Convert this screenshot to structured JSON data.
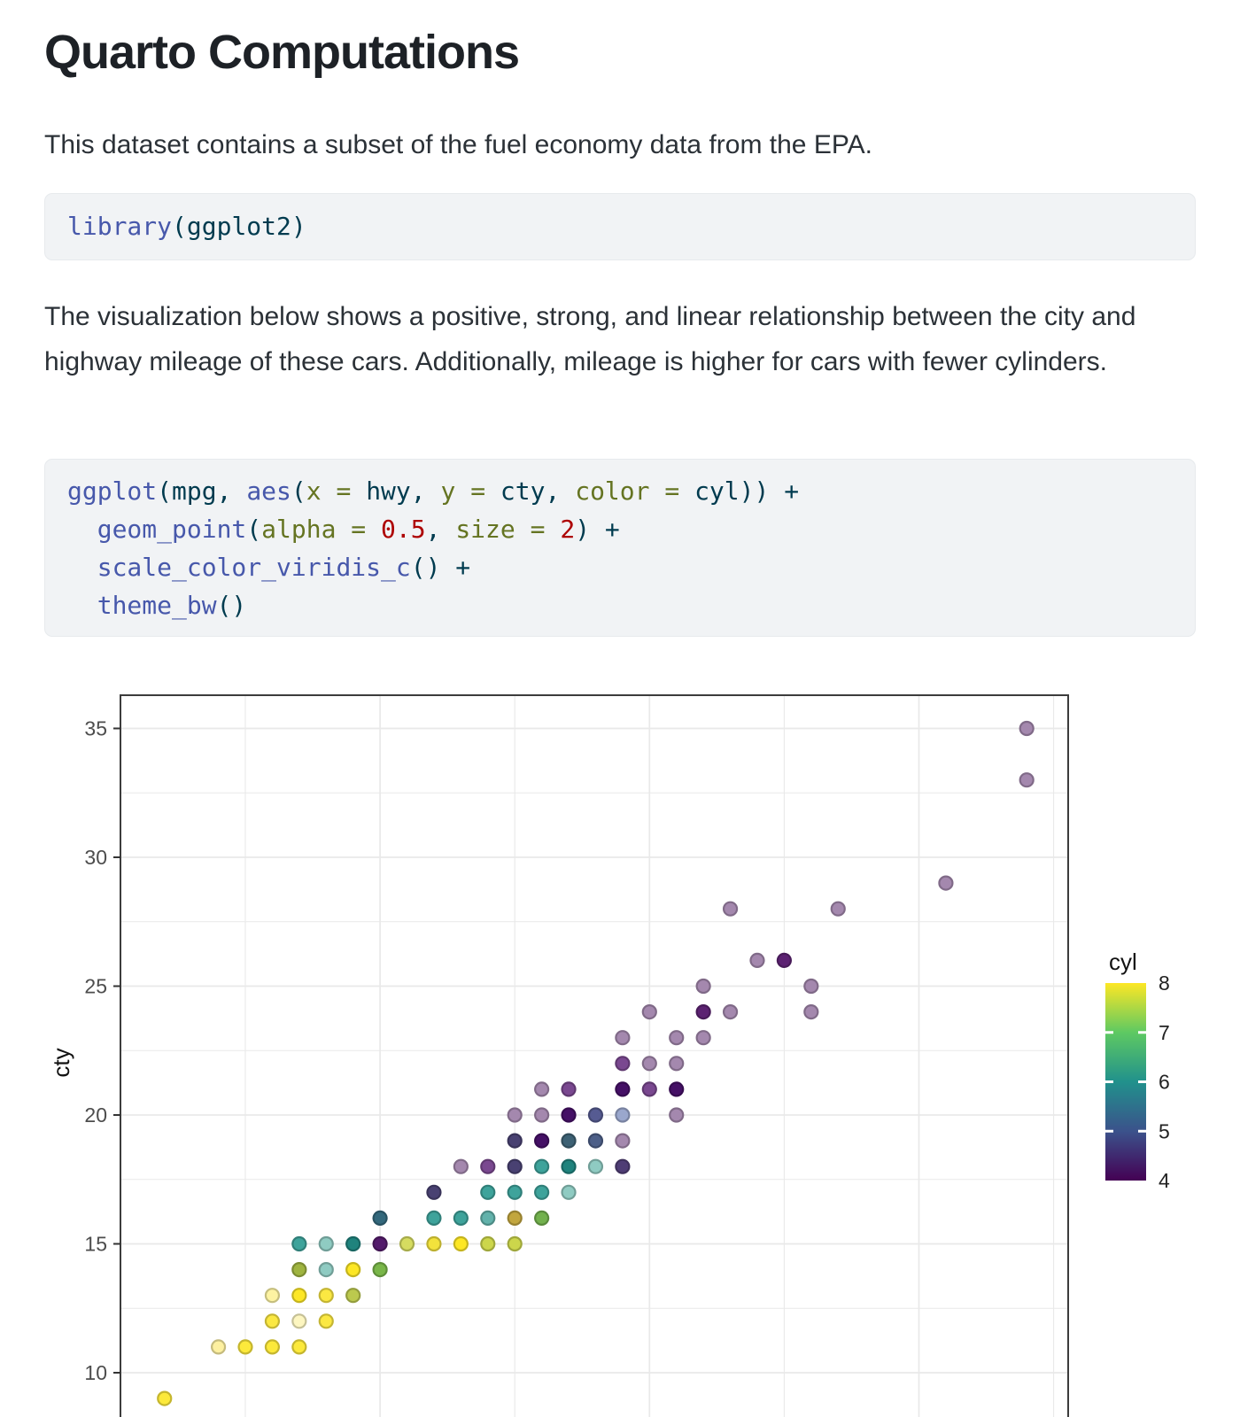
{
  "document": {
    "title": "Quarto Computations",
    "paragraph_1": "This dataset contains a subset of the fuel economy data from the EPA.",
    "paragraph_2": "The visualization below shows a positive, strong, and linear relationship between the city and highway mileage of these cars. Additionally, mileage is higher for cars with fewer cylinders."
  },
  "syntax_colors": {
    "fu": "#4758AB",
    "base": "#003B4F",
    "at": "#657422",
    "num": "#AD0000"
  },
  "code_blocks": [
    {
      "name": "library-call",
      "lines": [
        [
          [
            "library",
            "fu"
          ],
          [
            "(ggplot2)",
            "base"
          ]
        ]
      ]
    },
    {
      "name": "ggplot-call",
      "lines": [
        [
          [
            "ggplot",
            "fu"
          ],
          [
            "(mpg, ",
            "base"
          ],
          [
            "aes",
            "fu"
          ],
          [
            "(",
            "base"
          ],
          [
            "x = ",
            "at"
          ],
          [
            "hwy, ",
            "base"
          ],
          [
            "y = ",
            "at"
          ],
          [
            "cty, ",
            "base"
          ],
          [
            "color = ",
            "at"
          ],
          [
            "cyl)) +",
            "base"
          ]
        ],
        [
          [
            "  ",
            "base"
          ],
          [
            "geom_point",
            "fu"
          ],
          [
            "(",
            "base"
          ],
          [
            "alpha = ",
            "at"
          ],
          [
            "0.5",
            "num"
          ],
          [
            ", ",
            "base"
          ],
          [
            "size = ",
            "at"
          ],
          [
            "2",
            "num"
          ],
          [
            ") +",
            "base"
          ]
        ],
        [
          [
            "  ",
            "base"
          ],
          [
            "scale_color_viridis_c",
            "fu"
          ],
          [
            "() +",
            "base"
          ]
        ],
        [
          [
            "  ",
            "base"
          ],
          [
            "theme_bw",
            "fu"
          ],
          [
            "()",
            "base"
          ]
        ]
      ]
    }
  ],
  "chart_data": {
    "type": "scatter",
    "x_field": "hwy",
    "y_field": "cty",
    "color_field": "cyl",
    "ylabel": "cty",
    "xlabel": "",
    "x_axis_labels_visible": false,
    "grid": true,
    "y_ticks": [
      35,
      30,
      25,
      20,
      15,
      10
    ],
    "y_gridlines_minor": [
      32.5,
      27.5,
      22.5,
      17.5,
      12.5
    ],
    "x_gridlines_major": [
      20,
      30,
      40
    ],
    "x_gridlines_minor": [
      15,
      25,
      35,
      45
    ],
    "x_range_visible": [
      10.8,
      45.5
    ],
    "y_range_visible": [
      8.2,
      36.3
    ],
    "panel_border_color": "#3c3c3c",
    "gridline_color": "#e9e9e9",
    "tick_label_color": "#4d4d4d",
    "legend": {
      "title": "cyl",
      "position": "right",
      "ticks": [
        8,
        7,
        6,
        5,
        4
      ],
      "viridis_top_to_bottom": [
        "#FDE725",
        "#5EC962",
        "#21918C",
        "#3B528B",
        "#440154"
      ]
    },
    "points": {
      "columns": [
        "hwy",
        "cty",
        "fill"
      ],
      "rows": [
        [
          44,
          35,
          "#a488ae"
        ],
        [
          44,
          33,
          "#a488ae"
        ],
        [
          41,
          29,
          "#a488ae"
        ],
        [
          33,
          28,
          "#a488ae"
        ],
        [
          37,
          28,
          "#a488ae"
        ],
        [
          34,
          26,
          "#a488ae"
        ],
        [
          35,
          26,
          "#5c2272"
        ],
        [
          32,
          25,
          "#a488ae"
        ],
        [
          36,
          25,
          "#a488ae"
        ],
        [
          30,
          24,
          "#a488ae"
        ],
        [
          32,
          24,
          "#5c2272"
        ],
        [
          33,
          24,
          "#a488ae"
        ],
        [
          36,
          24,
          "#a488ae"
        ],
        [
          29,
          23,
          "#a488ae"
        ],
        [
          31,
          23,
          "#a488ae"
        ],
        [
          32,
          23,
          "#a488ae"
        ],
        [
          29,
          22,
          "#7a4890"
        ],
        [
          30,
          22,
          "#a488ae"
        ],
        [
          31,
          22,
          "#a488ae"
        ],
        [
          26,
          21,
          "#a488ae"
        ],
        [
          27,
          21,
          "#7a4890"
        ],
        [
          29,
          21,
          "#451066"
        ],
        [
          30,
          21,
          "#7a4890"
        ],
        [
          31,
          21,
          "#451066"
        ],
        [
          25,
          20,
          "#a488ae"
        ],
        [
          26,
          20,
          "#a488ae"
        ],
        [
          27,
          20,
          "#451066"
        ],
        [
          28,
          20,
          "#565b92"
        ],
        [
          29,
          20,
          "#9aa7cd"
        ],
        [
          31,
          20,
          "#a488ae"
        ],
        [
          25,
          19,
          "#494172"
        ],
        [
          26,
          19,
          "#451066"
        ],
        [
          27,
          19,
          "#3d6174"
        ],
        [
          28,
          19,
          "#4d5f88"
        ],
        [
          29,
          19,
          "#a488ae"
        ],
        [
          23,
          18,
          "#a488ae"
        ],
        [
          24,
          18,
          "#7a4890"
        ],
        [
          25,
          18,
          "#494172"
        ],
        [
          26,
          18,
          "#3ea39b"
        ],
        [
          27,
          18,
          "#1f837d"
        ],
        [
          28,
          18,
          "#8fcbc2"
        ],
        [
          29,
          18,
          "#4f3d75"
        ],
        [
          22,
          17,
          "#494172"
        ],
        [
          24,
          17,
          "#3ea39b"
        ],
        [
          25,
          17,
          "#3ea39b"
        ],
        [
          26,
          17,
          "#3ea39b"
        ],
        [
          27,
          17,
          "#8fcbc2"
        ],
        [
          20,
          16,
          "#33687c"
        ],
        [
          22,
          16,
          "#3ea39b"
        ],
        [
          23,
          16,
          "#3ea39b"
        ],
        [
          24,
          16,
          "#62b2ab"
        ],
        [
          25,
          16,
          "#c2a63e"
        ],
        [
          26,
          16,
          "#72b14d"
        ],
        [
          17,
          15,
          "#3ea39b"
        ],
        [
          18,
          15,
          "#8fcbc2"
        ],
        [
          19,
          15,
          "#1f837d"
        ],
        [
          20,
          15,
          "#531b6b"
        ],
        [
          21,
          15,
          "#d6dc60"
        ],
        [
          22,
          15,
          "#f2e23c"
        ],
        [
          23,
          15,
          "#fde725"
        ],
        [
          24,
          15,
          "#ccd64b"
        ],
        [
          25,
          15,
          "#ccd64b"
        ],
        [
          17,
          14,
          "#9fb440"
        ],
        [
          18,
          14,
          "#8fcbc2"
        ],
        [
          19,
          14,
          "#fde725"
        ],
        [
          20,
          14,
          "#79b649"
        ],
        [
          16,
          13,
          "#fdf3a2"
        ],
        [
          17,
          13,
          "#fde725"
        ],
        [
          18,
          13,
          "#fbe842"
        ],
        [
          19,
          13,
          "#bcc94e"
        ],
        [
          16,
          12,
          "#fbe842"
        ],
        [
          17,
          12,
          "#fdf6c0"
        ],
        [
          18,
          12,
          "#fbe842"
        ],
        [
          14,
          11,
          "#fdf0a0"
        ],
        [
          15,
          11,
          "#fce93b"
        ],
        [
          16,
          11,
          "#fce93b"
        ],
        [
          17,
          11,
          "#fce93b"
        ],
        [
          12,
          9,
          "#fce93b"
        ]
      ]
    }
  }
}
